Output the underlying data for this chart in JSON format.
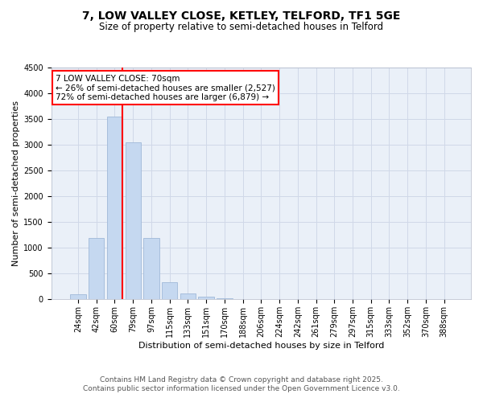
{
  "title_line1": "7, LOW VALLEY CLOSE, KETLEY, TELFORD, TF1 5GE",
  "title_line2": "Size of property relative to semi-detached houses in Telford",
  "xlabel": "Distribution of semi-detached houses by size in Telford",
  "ylabel": "Number of semi-detached properties",
  "categories": [
    "24sqm",
    "42sqm",
    "60sqm",
    "79sqm",
    "97sqm",
    "115sqm",
    "133sqm",
    "151sqm",
    "170sqm",
    "188sqm",
    "206sqm",
    "224sqm",
    "242sqm",
    "261sqm",
    "279sqm",
    "297sqm",
    "315sqm",
    "333sqm",
    "352sqm",
    "370sqm",
    "388sqm"
  ],
  "values": [
    100,
    1200,
    3550,
    3050,
    1200,
    330,
    110,
    55,
    30,
    10,
    5,
    0,
    0,
    0,
    0,
    0,
    0,
    0,
    0,
    0,
    0
  ],
  "bar_color": "#c5d8f0",
  "bar_edge_color": "#a0b8d8",
  "vline_color": "red",
  "vline_index": 2,
  "annotation_text": "7 LOW VALLEY CLOSE: 70sqm\n← 26% of semi-detached houses are smaller (2,527)\n72% of semi-detached houses are larger (6,879) →",
  "annotation_box_color": "white",
  "annotation_box_edge": "red",
  "ylim": [
    0,
    4500
  ],
  "yticks": [
    0,
    500,
    1000,
    1500,
    2000,
    2500,
    3000,
    3500,
    4000,
    4500
  ],
  "grid_color": "#d0d8e8",
  "background_color": "#eaf0f8",
  "footer_line1": "Contains HM Land Registry data © Crown copyright and database right 2025.",
  "footer_line2": "Contains public sector information licensed under the Open Government Licence v3.0.",
  "title_fontsize": 10,
  "subtitle_fontsize": 8.5,
  "axis_label_fontsize": 8,
  "tick_fontsize": 7,
  "annotation_fontsize": 7.5,
  "footer_fontsize": 6.5
}
